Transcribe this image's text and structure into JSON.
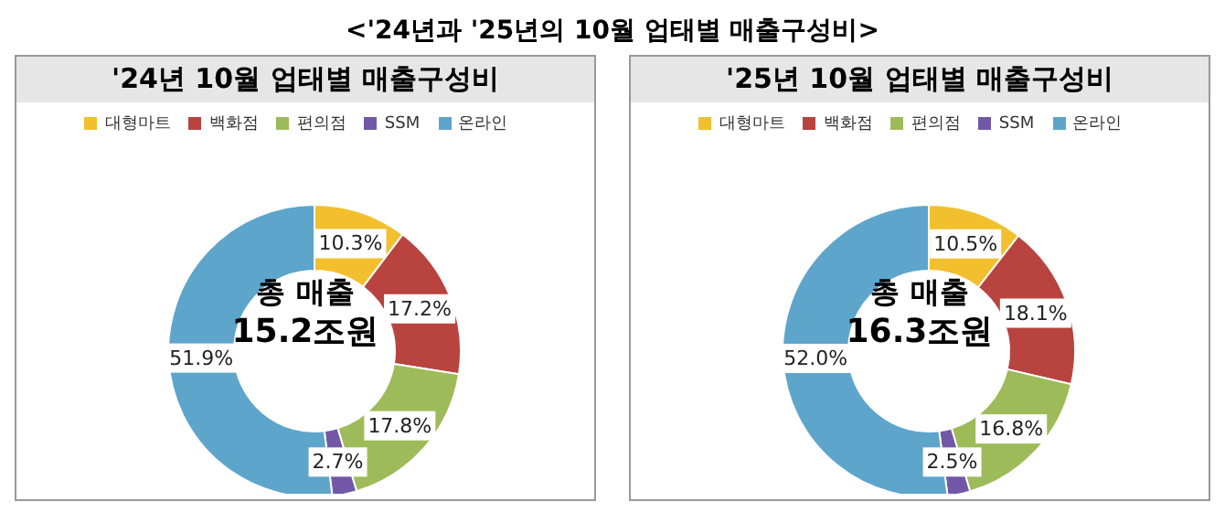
{
  "chart_data": [
    {
      "type": "donut",
      "title": "'24년 10월 업태별 매출구성비",
      "annotations": [
        "<'24년과 '25년의 10월 업태별 매출구성비>",
        "총 매출",
        "15.2조원"
      ],
      "categories": [
        "대형마트",
        "백화점",
        "편의점",
        "SSM",
        "온라인"
      ],
      "values": [
        10.3,
        17.2,
        17.8,
        2.7,
        51.9
      ],
      "value_labels": [
        "10.3%",
        "17.2%",
        "17.8%",
        "2.7%",
        "51.9%"
      ],
      "colors": [
        "#f2c02f",
        "#b8433f",
        "#9dbb59",
        "#7257a6",
        "#5ea5cc"
      ],
      "legend": "top"
    },
    {
      "type": "donut",
      "title": "'25년 10월 업태별 매출구성비",
      "annotations": [
        "총 매출",
        "16.3조원"
      ],
      "categories": [
        "대형마트",
        "백화점",
        "편의점",
        "SSM",
        "온라인"
      ],
      "values": [
        10.5,
        18.1,
        16.8,
        2.5,
        52.0
      ],
      "value_labels": [
        "10.5%",
        "18.1%",
        "16.8%",
        "2.5%",
        "52.0%"
      ],
      "colors": [
        "#f2c02f",
        "#b8433f",
        "#9dbb59",
        "#7257a6",
        "#5ea5cc"
      ],
      "legend": "top"
    }
  ]
}
